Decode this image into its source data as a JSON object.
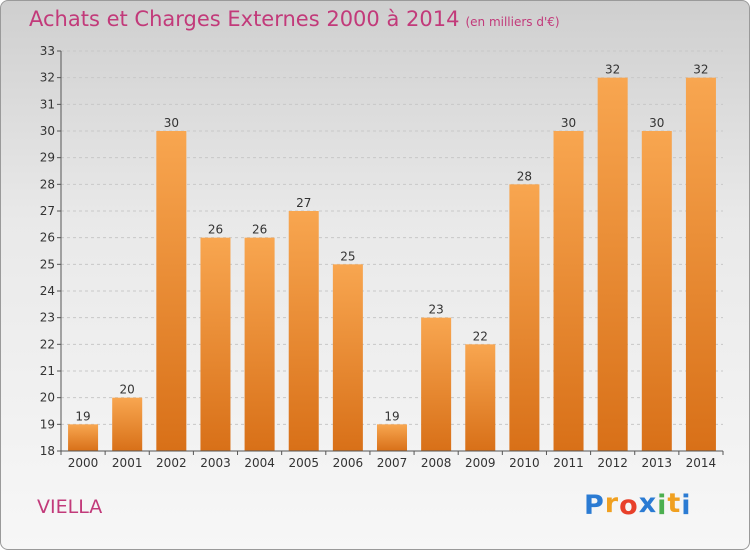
{
  "header": {
    "title": "Achats et Charges Externes 2000 à 2014",
    "subtitle": "(en milliers d'€)"
  },
  "footer": {
    "commune": "VIELLA",
    "logo_letters": [
      "P",
      "r",
      "o",
      "x",
      "i",
      "t",
      "i"
    ],
    "logo_colors": [
      "#2b7bd3",
      "#f0a020",
      "#e8402a",
      "#2b7bd3",
      "#4caf50",
      "#f0a020",
      "#2b7bd3"
    ]
  },
  "colors": {
    "bar_top": "#f8a650",
    "bar_bottom": "#d87018",
    "grid": "#c8c8c8",
    "axis_text": "#333333",
    "accent": "#c23a7a"
  },
  "chart_data": {
    "type": "bar",
    "title": "Achats et Charges Externes 2000 à 2014",
    "subtitle": "(en milliers d'€)",
    "xlabel": "",
    "ylabel": "",
    "categories": [
      "2000",
      "2001",
      "2002",
      "2003",
      "2004",
      "2005",
      "2006",
      "2007",
      "2008",
      "2009",
      "2010",
      "2011",
      "2012",
      "2013",
      "2014"
    ],
    "values": [
      19,
      20,
      30,
      26,
      26,
      27,
      25,
      19,
      23,
      22,
      28,
      30,
      32,
      30,
      32
    ],
    "ylim": [
      18,
      33
    ],
    "yticks": [
      18,
      19,
      20,
      21,
      22,
      23,
      24,
      25,
      26,
      27,
      28,
      29,
      30,
      31,
      32,
      33
    ],
    "grid": true,
    "legend": "none"
  }
}
